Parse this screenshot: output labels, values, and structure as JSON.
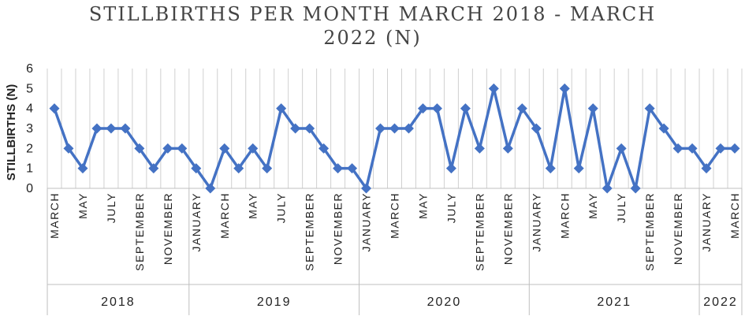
{
  "title_line1": "STILLBIRTHS PER MONTH MARCH 2018 - MARCH",
  "title_line2": "2022 (N)",
  "chart_data": {
    "type": "line",
    "title": "STILLBIRTHS PER MONTH MARCH 2018 - MARCH 2022 (N)",
    "xlabel": "",
    "ylabel": "STILLBIRTHS (N)",
    "ylim": [
      0,
      6
    ],
    "yticks": [
      0,
      1,
      2,
      3,
      4,
      5,
      6
    ],
    "grid": "vertical",
    "legend": "none",
    "line_color": "#4472C4",
    "marker": "diamond",
    "x": [
      {
        "month": "MARCH",
        "year": "2018"
      },
      {
        "month": "APRIL",
        "year": "2018"
      },
      {
        "month": "MAY",
        "year": "2018"
      },
      {
        "month": "JUNE",
        "year": "2018"
      },
      {
        "month": "JULY",
        "year": "2018"
      },
      {
        "month": "AUGUST",
        "year": "2018"
      },
      {
        "month": "SEPTEMBER",
        "year": "2018"
      },
      {
        "month": "OCTOBER",
        "year": "2018"
      },
      {
        "month": "NOVEMBER",
        "year": "2018"
      },
      {
        "month": "DECEMBER",
        "year": "2018"
      },
      {
        "month": "JANUARY",
        "year": "2019"
      },
      {
        "month": "FEBRUARY",
        "year": "2019"
      },
      {
        "month": "MARCH",
        "year": "2019"
      },
      {
        "month": "APRIL",
        "year": "2019"
      },
      {
        "month": "MAY",
        "year": "2019"
      },
      {
        "month": "JUNE",
        "year": "2019"
      },
      {
        "month": "JULY",
        "year": "2019"
      },
      {
        "month": "AUGUST",
        "year": "2019"
      },
      {
        "month": "SEPTEMBER",
        "year": "2019"
      },
      {
        "month": "OCTOBER",
        "year": "2019"
      },
      {
        "month": "NOVEMBER",
        "year": "2019"
      },
      {
        "month": "DECEMBER",
        "year": "2019"
      },
      {
        "month": "JANUARY",
        "year": "2020"
      },
      {
        "month": "FEBRUARY",
        "year": "2020"
      },
      {
        "month": "MARCH",
        "year": "2020"
      },
      {
        "month": "APRIL",
        "year": "2020"
      },
      {
        "month": "MAY",
        "year": "2020"
      },
      {
        "month": "JUNE",
        "year": "2020"
      },
      {
        "month": "JULY",
        "year": "2020"
      },
      {
        "month": "AUGUST",
        "year": "2020"
      },
      {
        "month": "SEPTEMBER",
        "year": "2020"
      },
      {
        "month": "OCTOBER",
        "year": "2020"
      },
      {
        "month": "NOVEMBER",
        "year": "2020"
      },
      {
        "month": "DECEMBER",
        "year": "2020"
      },
      {
        "month": "JANUARY",
        "year": "2021"
      },
      {
        "month": "FEBRUARY",
        "year": "2021"
      },
      {
        "month": "MARCH",
        "year": "2021"
      },
      {
        "month": "APRIL",
        "year": "2021"
      },
      {
        "month": "MAY",
        "year": "2021"
      },
      {
        "month": "JUNE",
        "year": "2021"
      },
      {
        "month": "JULY",
        "year": "2021"
      },
      {
        "month": "AUGUST",
        "year": "2021"
      },
      {
        "month": "SEPTEMBER",
        "year": "2021"
      },
      {
        "month": "OCTOBER",
        "year": "2021"
      },
      {
        "month": "NOVEMBER",
        "year": "2021"
      },
      {
        "month": "DECEMBER",
        "year": "2021"
      },
      {
        "month": "JANUARY",
        "year": "2022"
      },
      {
        "month": "FEBRUARY",
        "year": "2022"
      },
      {
        "month": "MARCH",
        "year": "2022"
      }
    ],
    "tick_labels": [
      {
        "month": "MARCH",
        "year": "2018"
      },
      {
        "month": "MAY",
        "year": "2018"
      },
      {
        "month": "JULY",
        "year": "2018"
      },
      {
        "month": "SEPTEMBER",
        "year": "2018"
      },
      {
        "month": "NOVEMBER",
        "year": "2018"
      },
      {
        "month": "JANUARY",
        "year": "2019"
      },
      {
        "month": "MARCH",
        "year": "2019"
      },
      {
        "month": "MAY",
        "year": "2019"
      },
      {
        "month": "JULY",
        "year": "2019"
      },
      {
        "month": "SEPTEMBER",
        "year": "2019"
      },
      {
        "month": "NOVEMBER",
        "year": "2019"
      },
      {
        "month": "JANUARY",
        "year": "2020"
      },
      {
        "month": "MARCH",
        "year": "2020"
      },
      {
        "month": "MAY",
        "year": "2020"
      },
      {
        "month": "JULY",
        "year": "2020"
      },
      {
        "month": "SEPTEMBER",
        "year": "2020"
      },
      {
        "month": "NOVEMBER",
        "year": "2020"
      },
      {
        "month": "JANUARY",
        "year": "2021"
      },
      {
        "month": "MARCH",
        "year": "2021"
      },
      {
        "month": "MAY",
        "year": "2021"
      },
      {
        "month": "JULY",
        "year": "2021"
      },
      {
        "month": "SEPTEMBER",
        "year": "2021"
      },
      {
        "month": "NOVEMBER",
        "year": "2021"
      },
      {
        "month": "JANUARY",
        "year": "2022"
      },
      {
        "month": "MARCH",
        "year": "2022"
      }
    ],
    "years": [
      "2018",
      "2019",
      "2020",
      "2021",
      "2022"
    ],
    "series": [
      {
        "values": [
          4,
          2,
          1,
          3,
          3,
          3,
          2,
          1,
          2,
          2,
          1,
          0,
          2,
          1,
          2,
          1,
          4,
          3,
          3,
          2,
          1,
          1,
          0,
          3,
          3,
          3,
          4,
          4,
          1,
          4,
          2,
          5,
          2,
          4,
          3,
          1,
          5,
          1,
          4,
          0,
          2,
          0,
          4,
          3,
          2,
          2,
          1,
          2,
          2
        ]
      }
    ]
  }
}
